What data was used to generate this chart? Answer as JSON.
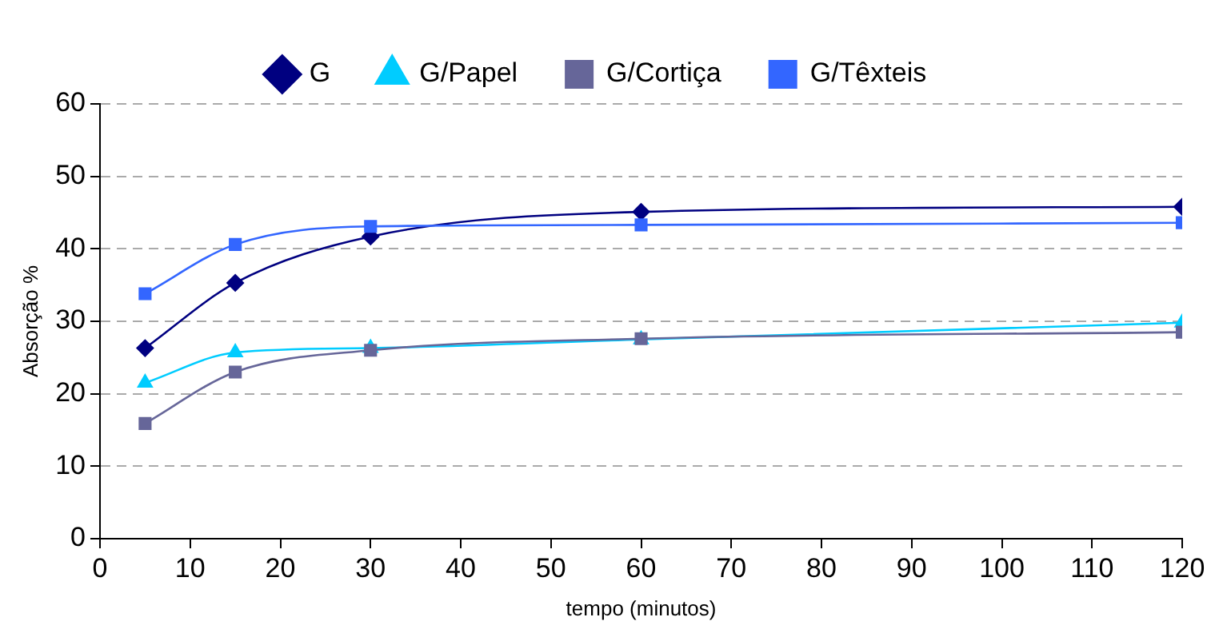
{
  "chart_data": {
    "type": "line",
    "xlabel": "tempo (minutos)",
    "ylabel": "Absorção %",
    "x": [
      5,
      15,
      30,
      60,
      120
    ],
    "series": [
      {
        "name": "G",
        "color": "#000080",
        "marker": "diamond",
        "values": [
          26.3,
          35.3,
          41.7,
          45.1,
          45.8
        ]
      },
      {
        "name": "G/Papel",
        "color": "#00ccff",
        "marker": "triangle",
        "values": [
          21.5,
          25.7,
          26.3,
          27.5,
          29.8
        ]
      },
      {
        "name": "G/Cortiça",
        "color": "#666699",
        "marker": "square",
        "values": [
          15.9,
          23.0,
          26.0,
          27.6,
          28.5
        ]
      },
      {
        "name": "G/Têxteis",
        "color": "#3366ff",
        "marker": "square",
        "values": [
          33.8,
          40.6,
          43.1,
          43.3,
          43.6
        ]
      }
    ],
    "xlim": [
      0,
      120
    ],
    "xticks": [
      0,
      10,
      20,
      30,
      40,
      50,
      60,
      70,
      80,
      90,
      100,
      110,
      120
    ],
    "ylim": [
      0,
      60
    ],
    "yticks": [
      0,
      10,
      20,
      30,
      40,
      50,
      60
    ],
    "grid": "y",
    "legend": "top",
    "line_style": "solid"
  }
}
